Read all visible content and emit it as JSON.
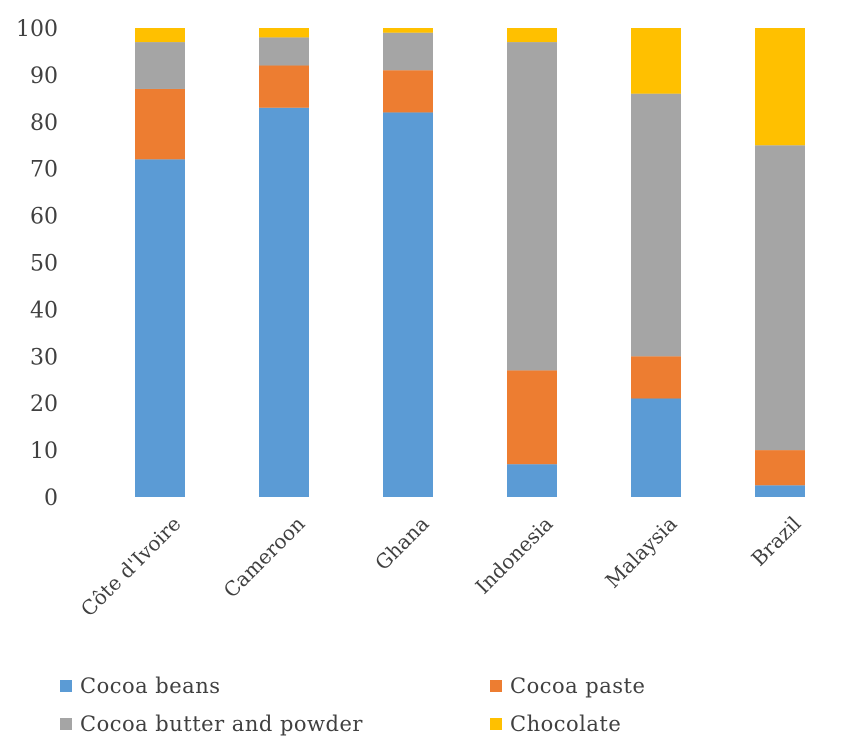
{
  "chart_data": {
    "type": "bar",
    "stacked": true,
    "title": "",
    "xlabel": "",
    "ylabel": "",
    "ylim": [
      0,
      100
    ],
    "yticks": [
      0,
      10,
      20,
      30,
      40,
      50,
      60,
      70,
      80,
      90,
      100
    ],
    "categories": [
      "Côte d'Ivoire",
      "Cameroon",
      "Ghana",
      "Indonesia",
      "Malaysia",
      "Brazil"
    ],
    "series": [
      {
        "name": "Cocoa beans",
        "color": "#5B9BD5",
        "values": [
          72,
          83,
          82,
          7,
          21,
          2.5
        ]
      },
      {
        "name": "Cocoa paste",
        "color": "#ED7D31",
        "values": [
          15,
          9,
          9,
          20,
          9,
          7.5
        ]
      },
      {
        "name": "Cocoa butter and powder",
        "color": "#A5A5A5",
        "values": [
          10,
          6,
          8,
          70,
          56,
          65
        ]
      },
      {
        "name": "Chocolate",
        "color": "#FFC000",
        "values": [
          3,
          2,
          1,
          3,
          14,
          25
        ]
      }
    ],
    "grid": false,
    "legend_position": "bottom"
  }
}
